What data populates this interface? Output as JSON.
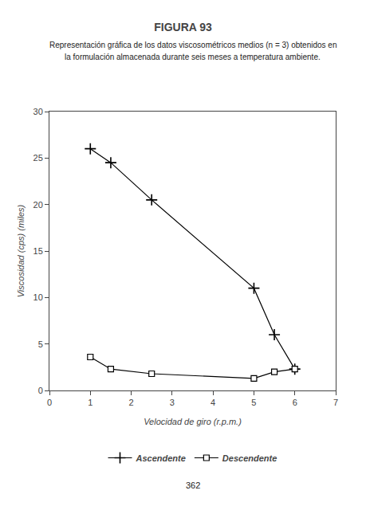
{
  "chart_data": {
    "type": "line",
    "title": "FIGURA 93",
    "subtitle": [
      "Representación gráfica de los datos viscosométricos medios (n = 3) obtenidos en",
      "la formulación almacenada durante seis meses a temperatura ambiente."
    ],
    "xlabel": "Velocidad de giro (r.p.m.)",
    "ylabel": "Viscosidad (cps) (miles)",
    "x": [
      1,
      1.5,
      2.5,
      5,
      5.5,
      6
    ],
    "series": [
      {
        "name": "Ascendente",
        "color": "#000000",
        "marker": "cross",
        "values": [
          26,
          24.5,
          20.5,
          11,
          6,
          2.3
        ]
      },
      {
        "name": "Descendente",
        "color": "#000000",
        "marker": "square",
        "values": [
          3.6,
          2.3,
          1.8,
          1.3,
          2.0,
          2.3
        ]
      }
    ],
    "xlim": [
      0,
      7
    ],
    "xticks": [
      0,
      1,
      2,
      3,
      4,
      5,
      6,
      7
    ],
    "ylim": [
      0,
      30
    ],
    "yticks": [
      0,
      5,
      10,
      15,
      20,
      25,
      30
    ],
    "grid": false,
    "legend": "bottom",
    "annotations": [
      "362"
    ]
  }
}
